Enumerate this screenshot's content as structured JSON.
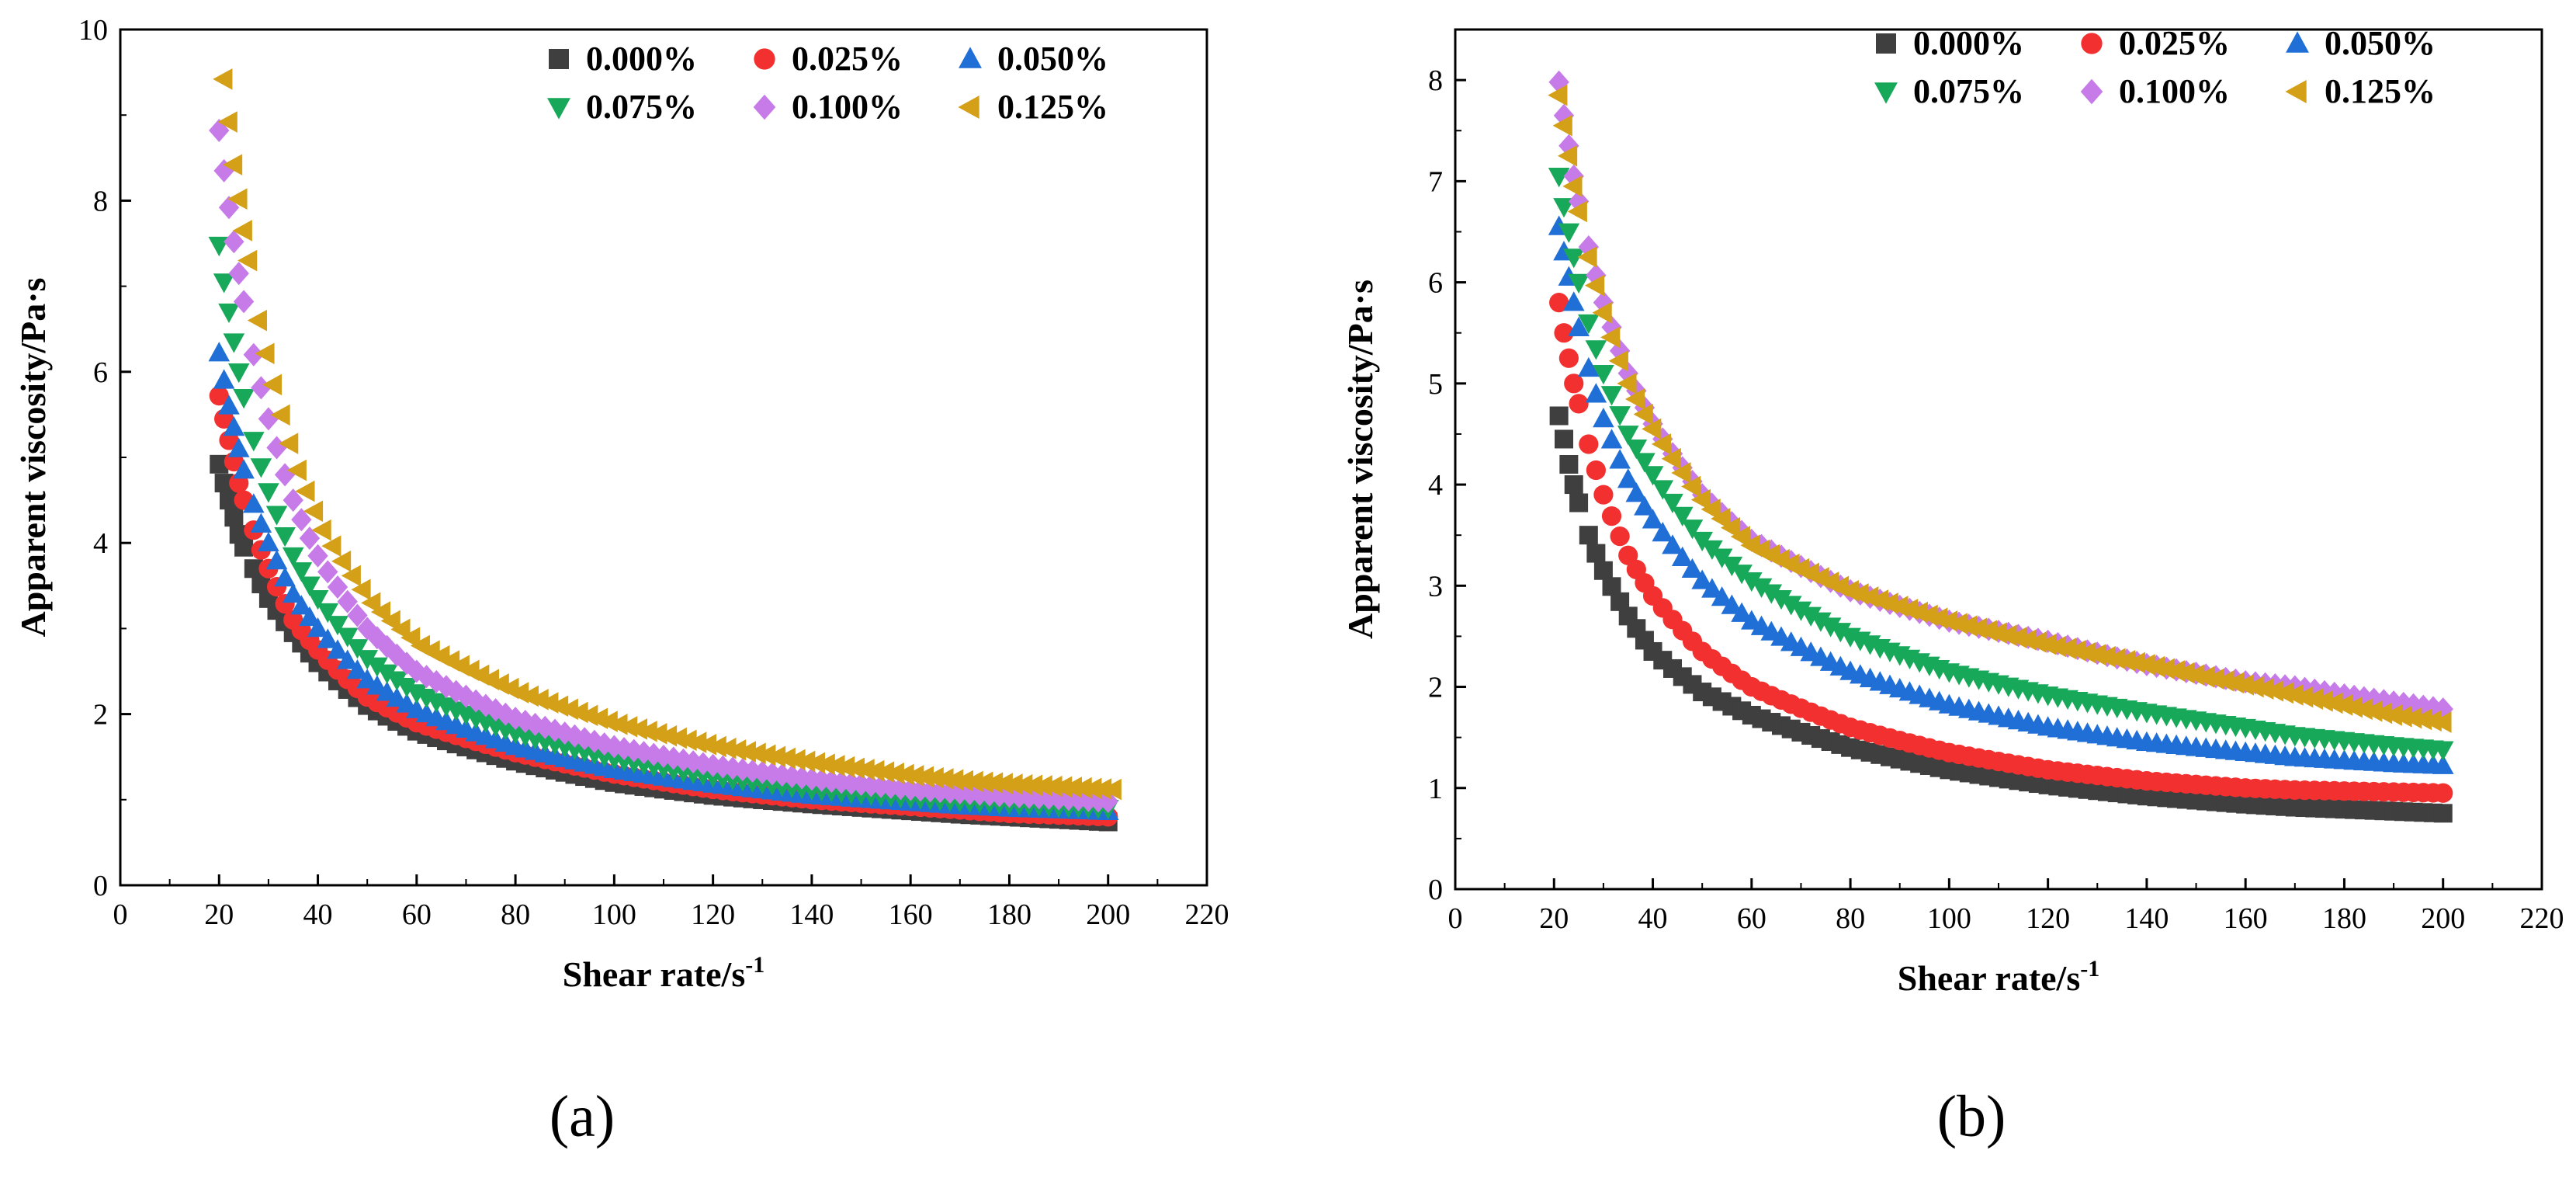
{
  "chart_data": [
    {
      "type": "scatter",
      "caption": "(a)",
      "xlabel": "Shear rate/s",
      "xlabel_sup": "-1",
      "ylabel": "Apparent viscosity/Pa·s",
      "xlim": [
        0,
        220
      ],
      "ylim": [
        0,
        10
      ],
      "xticks": [
        "0",
        "20",
        "40",
        "60",
        "80",
        "100",
        "120",
        "140",
        "160",
        "180",
        "200",
        "220"
      ],
      "yticks": [
        "0",
        "2",
        "4",
        "6",
        "8",
        "10"
      ],
      "legend_position": "top-right",
      "series": [
        {
          "name": "0.000%",
          "color": "#3f3f3f",
          "marker": "square",
          "x": [
            20,
            21,
            22,
            23,
            24,
            25,
            27,
            30,
            35,
            40,
            50,
            60,
            80,
            100,
            120,
            140,
            160,
            170,
            180,
            190,
            200
          ],
          "y": [
            4.92,
            4.7,
            4.5,
            4.3,
            4.1,
            3.95,
            3.7,
            3.35,
            2.95,
            2.6,
            2.1,
            1.8,
            1.45,
            1.2,
            1.05,
            0.95,
            0.87,
            0.83,
            0.8,
            0.77,
            0.74
          ]
        },
        {
          "name": "0.025%",
          "color": "#f23030",
          "marker": "circle",
          "x": [
            20,
            21,
            22,
            23,
            24,
            25,
            27,
            30,
            35,
            40,
            50,
            60,
            80,
            100,
            120,
            140,
            160,
            170,
            180,
            190,
            200
          ],
          "y": [
            5.72,
            5.45,
            5.2,
            4.95,
            4.7,
            4.5,
            4.15,
            3.7,
            3.1,
            2.75,
            2.2,
            1.9,
            1.55,
            1.3,
            1.12,
            1.0,
            0.92,
            0.88,
            0.84,
            0.82,
            0.8
          ]
        },
        {
          "name": "0.050%",
          "color": "#1f6fd6",
          "marker": "triangle-up",
          "x": [
            20,
            21,
            22,
            23,
            24,
            25,
            27,
            30,
            35,
            40,
            50,
            60,
            80,
            100,
            120,
            140,
            160,
            170,
            180,
            190,
            200
          ],
          "y": [
            6.22,
            5.9,
            5.6,
            5.35,
            5.1,
            4.85,
            4.45,
            4.0,
            3.4,
            3.0,
            2.4,
            2.05,
            1.62,
            1.35,
            1.18,
            1.05,
            0.97,
            0.93,
            0.9,
            0.88,
            0.86
          ]
        },
        {
          "name": "0.075%",
          "color": "#17a85a",
          "marker": "triangle-down",
          "x": [
            20,
            21,
            22,
            23,
            24,
            25,
            27,
            30,
            35,
            40,
            50,
            60,
            80,
            100,
            120,
            140,
            160,
            170,
            180,
            190,
            200
          ],
          "y": [
            7.48,
            7.05,
            6.7,
            6.35,
            6.0,
            5.7,
            5.2,
            4.6,
            3.85,
            3.35,
            2.65,
            2.25,
            1.78,
            1.48,
            1.27,
            1.12,
            1.02,
            0.98,
            0.95,
            0.92,
            0.9
          ]
        },
        {
          "name": "0.100%",
          "color": "#c67be8",
          "marker": "diamond",
          "x": [
            20,
            21,
            22,
            23,
            24,
            25,
            27,
            30,
            35,
            40,
            50,
            60,
            80,
            100,
            120,
            140,
            160,
            170,
            180,
            190,
            200
          ],
          "y": [
            8.82,
            8.35,
            7.92,
            7.52,
            7.15,
            6.82,
            6.2,
            5.45,
            4.5,
            3.85,
            3.0,
            2.5,
            1.95,
            1.62,
            1.4,
            1.24,
            1.12,
            1.08,
            1.04,
            1.01,
            0.98
          ]
        },
        {
          "name": "0.125%",
          "color": "#d4a017",
          "marker": "triangle-left",
          "x": [
            21,
            22,
            23,
            24,
            25,
            26,
            28,
            31,
            36,
            41,
            51,
            61,
            81,
            101,
            121,
            141,
            161,
            171,
            181,
            191,
            201
          ],
          "y": [
            9.42,
            8.92,
            8.42,
            8.02,
            7.65,
            7.3,
            6.6,
            5.85,
            4.85,
            4.15,
            3.3,
            2.8,
            2.25,
            1.88,
            1.62,
            1.43,
            1.28,
            1.22,
            1.18,
            1.15,
            1.12
          ]
        }
      ]
    },
    {
      "type": "scatter",
      "caption": "(b)",
      "xlabel": "Shear rate/s",
      "xlabel_sup": "-1",
      "ylabel": "Apparent viscosity/Pa·s",
      "xlim": [
        0,
        220
      ],
      "ylim": [
        0,
        8.5
      ],
      "xticks": [
        "0",
        "20",
        "40",
        "60",
        "80",
        "100",
        "120",
        "140",
        "160",
        "180",
        "200",
        "220"
      ],
      "yticks": [
        "0",
        "1",
        "2",
        "3",
        "4",
        "5",
        "6",
        "7",
        "8"
      ],
      "legend_position": "top-right",
      "series": [
        {
          "name": "0.000%",
          "color": "#3f3f3f",
          "marker": "square",
          "x": [
            21,
            22,
            23,
            24,
            25,
            27,
            30,
            35,
            40,
            50,
            60,
            80,
            100,
            120,
            140,
            160,
            170,
            180,
            190,
            200
          ],
          "y": [
            4.68,
            4.45,
            4.2,
            4.0,
            3.82,
            3.5,
            3.15,
            2.7,
            2.35,
            1.95,
            1.72,
            1.4,
            1.18,
            1.03,
            0.92,
            0.84,
            0.81,
            0.79,
            0.77,
            0.75
          ]
        },
        {
          "name": "0.025%",
          "color": "#f23030",
          "marker": "circle",
          "x": [
            21,
            22,
            23,
            24,
            25,
            27,
            30,
            35,
            40,
            50,
            60,
            80,
            100,
            120,
            140,
            160,
            170,
            180,
            190,
            200
          ],
          "y": [
            5.8,
            5.5,
            5.25,
            5.0,
            4.8,
            4.4,
            3.9,
            3.3,
            2.9,
            2.35,
            2.0,
            1.6,
            1.35,
            1.18,
            1.07,
            1.0,
            0.98,
            0.97,
            0.96,
            0.95
          ]
        },
        {
          "name": "0.050%",
          "color": "#1f6fd6",
          "marker": "triangle-up",
          "x": [
            21,
            22,
            23,
            24,
            25,
            27,
            30,
            35,
            40,
            50,
            60,
            80,
            100,
            120,
            140,
            160,
            170,
            180,
            190,
            200
          ],
          "y": [
            6.55,
            6.3,
            6.05,
            5.8,
            5.55,
            5.15,
            4.65,
            4.05,
            3.65,
            3.05,
            2.65,
            2.15,
            1.82,
            1.6,
            1.45,
            1.35,
            1.3,
            1.27,
            1.24,
            1.22
          ]
        },
        {
          "name": "0.075%",
          "color": "#17a85a",
          "marker": "triangle-down",
          "x": [
            21,
            22,
            23,
            24,
            25,
            27,
            30,
            35,
            40,
            50,
            60,
            80,
            100,
            120,
            140,
            160,
            170,
            180,
            190,
            200
          ],
          "y": [
            7.05,
            6.75,
            6.5,
            6.25,
            6.0,
            5.6,
            5.1,
            4.5,
            4.1,
            3.45,
            3.05,
            2.5,
            2.15,
            1.92,
            1.75,
            1.6,
            1.52,
            1.47,
            1.42,
            1.38
          ]
        },
        {
          "name": "0.100%",
          "color": "#c67be8",
          "marker": "diamond",
          "x": [
            21,
            22,
            23,
            24,
            25,
            27,
            30,
            35,
            40,
            50,
            60,
            80,
            100,
            120,
            140,
            160,
            170,
            180,
            190,
            200
          ],
          "y": [
            7.98,
            7.65,
            7.35,
            7.05,
            6.8,
            6.35,
            5.8,
            5.1,
            4.6,
            3.9,
            3.45,
            2.95,
            2.65,
            2.45,
            2.22,
            2.05,
            2.0,
            1.92,
            1.85,
            1.78
          ]
        },
        {
          "name": "0.125%",
          "color": "#d4a017",
          "marker": "triangle-left",
          "x": [
            21,
            22,
            23,
            24,
            25,
            27,
            30,
            35,
            40,
            50,
            60,
            80,
            100,
            120,
            140,
            160,
            170,
            180,
            190,
            200
          ],
          "y": [
            7.85,
            7.55,
            7.25,
            6.95,
            6.7,
            6.25,
            5.7,
            5.0,
            4.55,
            3.85,
            3.4,
            2.95,
            2.65,
            2.42,
            2.22,
            2.02,
            1.92,
            1.82,
            1.72,
            1.65
          ]
        }
      ]
    }
  ]
}
